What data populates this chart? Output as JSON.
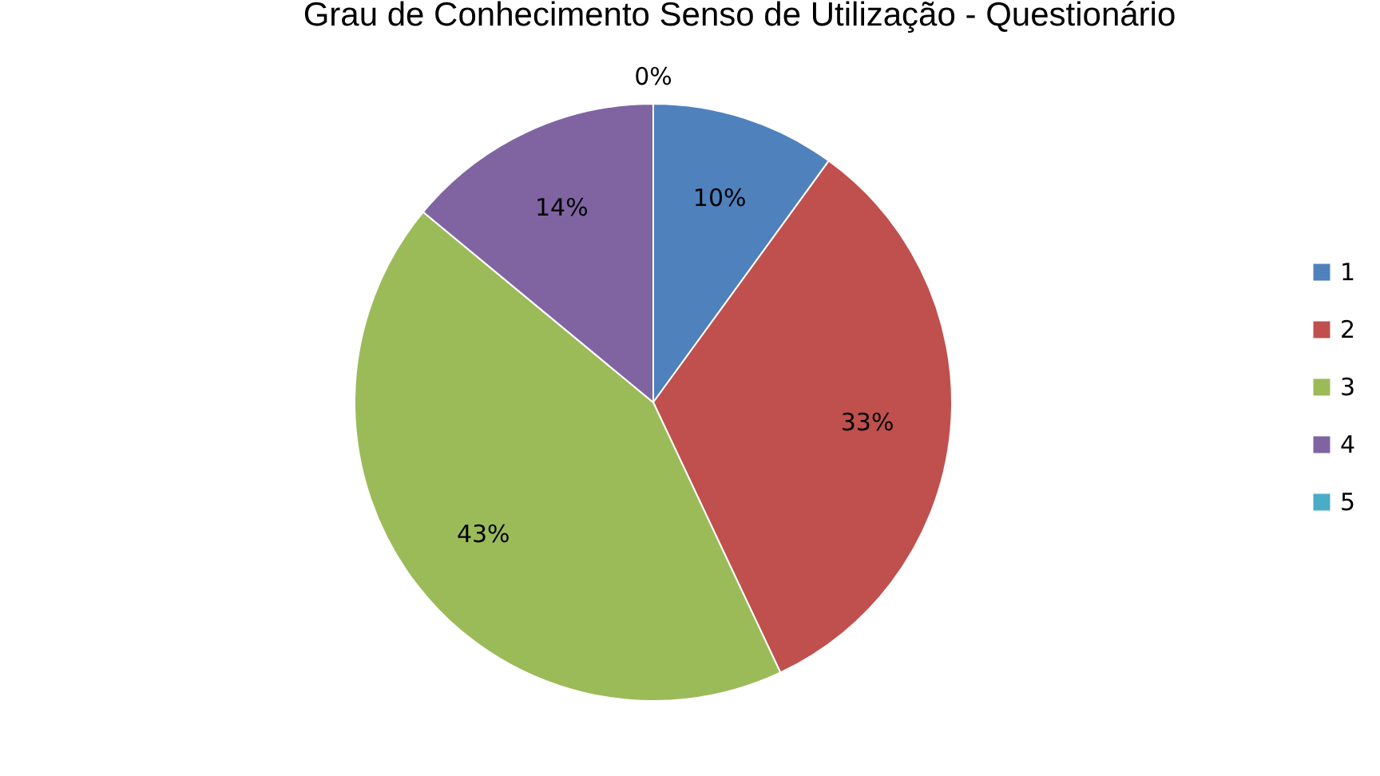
{
  "chart_data": {
    "type": "pie",
    "title": "Grau de Conhecimento Senso de Utilização - Questionário",
    "categories": [
      "1",
      "2",
      "3",
      "4",
      "5"
    ],
    "values": [
      10,
      33,
      43,
      14,
      0
    ],
    "value_labels": [
      "10%",
      "33%",
      "43%",
      "14%",
      "0%"
    ],
    "colors": [
      "#4f81bd",
      "#c0504d",
      "#9bbb59",
      "#8064a2",
      "#4bacc6"
    ],
    "legend": "right"
  }
}
